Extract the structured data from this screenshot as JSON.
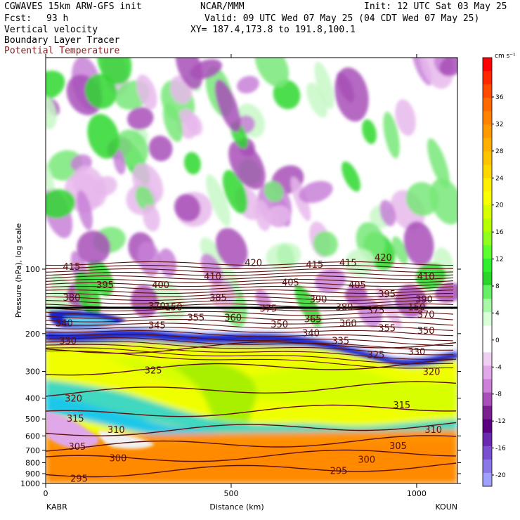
{
  "header": {
    "model": "CGWAVES 15km ARW-GFS init",
    "fcst_label": "Fcst:",
    "fcst_value": "93 h",
    "field1": "Vertical velocity",
    "field2": "Boundary Layer Tracer",
    "field3": "Potential Temperature",
    "source": "NCAR/MMM",
    "init": "Init: 12 UTC Sat 03 May 25",
    "valid": "Valid: 09 UTC Wed 07 May 25 (04 CDT Wed 07 May 25)",
    "xy": "XY= 187.4,173.8 to 191.8,100.1"
  },
  "colors": {
    "theta_line": "#5a1010",
    "tropopause_line": "#000000"
  },
  "chart_data": {
    "type": "heatmap",
    "title": "Vertical velocity, Boundary Layer Tracer, Potential Temperature cross section",
    "xlabel": "Distance (km)",
    "ylabel": "Pressure (hPa), log scale",
    "x_ticks": [
      "0",
      "500",
      "1000"
    ],
    "x_tick_values": [
      0,
      500,
      1000
    ],
    "xlim": [
      0,
      1110
    ],
    "y_ticks": [
      "100",
      "200",
      "300",
      "400",
      "500",
      "600",
      "700",
      "800",
      "900",
      "1000"
    ],
    "y_scale": "log",
    "x_endpoints": [
      "KABR",
      "KOUN"
    ],
    "colorbar": {
      "units": "cm s⁻¹",
      "ticks": [
        "36",
        "32",
        "28",
        "24",
        "20",
        "16",
        "12",
        "8",
        "4",
        "0",
        "-4",
        "-8",
        "-12",
        "-16",
        "-20"
      ],
      "colors": [
        "#ff0000",
        "#ff2800",
        "#ff4a00",
        "#ff6a00",
        "#ff8200",
        "#ff9a00",
        "#ffb000",
        "#ffc400",
        "#ffd800",
        "#fff000",
        "#f8ff00",
        "#d8ff00",
        "#b8ff00",
        "#90ff20",
        "#5cff30",
        "#30ee30",
        "#2ad42a",
        "#66f066",
        "#a8f8a8",
        "#d8ffd8",
        "#ffffff",
        "#ffffff",
        "#f0d0f0",
        "#e0a8e8",
        "#cc80d8",
        "#a850b8",
        "#7a2090",
        "#5a0080",
        "#6a28b0",
        "#7a50d0",
        "#8a78e8",
        "#a0a0ff"
      ]
    },
    "theta_contours": [
      {
        "label": "415",
        "p": 97
      },
      {
        "label": "395",
        "p": 118
      },
      {
        "label": "380",
        "p": 135
      },
      {
        "label": "370",
        "p": 150
      },
      {
        "label": "345",
        "p": 185
      },
      {
        "label": "340",
        "p": 195
      },
      {
        "label": "330",
        "p": 240
      },
      {
        "label": "325",
        "p": 300
      },
      {
        "label": "320",
        "p": 380
      },
      {
        "label": "315",
        "p": 480
      },
      {
        "label": "310",
        "p": 580
      },
      {
        "label": "305",
        "p": 680
      },
      {
        "label": "300",
        "p": 780
      },
      {
        "label": "295",
        "p": 900
      }
    ],
    "contour_labels": [
      {
        "text": "415",
        "x": 70,
        "p": 97
      },
      {
        "text": "395",
        "x": 160,
        "p": 118
      },
      {
        "text": "400",
        "x": 310,
        "p": 118
      },
      {
        "text": "380",
        "x": 70,
        "p": 135
      },
      {
        "text": "370",
        "x": 300,
        "p": 148
      },
      {
        "text": "150",
        "x": 345,
        "p": 150
      },
      {
        "text": "385",
        "x": 465,
        "p": 135
      },
      {
        "text": "410",
        "x": 450,
        "p": 108
      },
      {
        "text": "420",
        "x": 560,
        "p": 93
      },
      {
        "text": "405",
        "x": 660,
        "p": 115
      },
      {
        "text": "415",
        "x": 725,
        "p": 95
      },
      {
        "text": "415",
        "x": 815,
        "p": 93
      },
      {
        "text": "420",
        "x": 910,
        "p": 88
      },
      {
        "text": "405",
        "x": 840,
        "p": 118
      },
      {
        "text": "395",
        "x": 920,
        "p": 130
      },
      {
        "text": "410",
        "x": 1025,
        "p": 108
      },
      {
        "text": "390",
        "x": 735,
        "p": 138
      },
      {
        "text": "390",
        "x": 1020,
        "p": 138
      },
      {
        "text": "150",
        "x": 1000,
        "p": 150
      },
      {
        "text": "380",
        "x": 805,
        "p": 150
      },
      {
        "text": "375",
        "x": 890,
        "p": 155
      },
      {
        "text": "370",
        "x": 1025,
        "p": 162
      },
      {
        "text": "375",
        "x": 600,
        "p": 152
      },
      {
        "text": "355",
        "x": 405,
        "p": 168
      },
      {
        "text": "360",
        "x": 505,
        "p": 168
      },
      {
        "text": "365",
        "x": 720,
        "p": 170
      },
      {
        "text": "360",
        "x": 815,
        "p": 178
      },
      {
        "text": "355",
        "x": 920,
        "p": 188
      },
      {
        "text": "350",
        "x": 630,
        "p": 180
      },
      {
        "text": "350",
        "x": 1025,
        "p": 193
      },
      {
        "text": "345",
        "x": 300,
        "p": 182
      },
      {
        "text": "340",
        "x": 50,
        "p": 178
      },
      {
        "text": "340",
        "x": 715,
        "p": 198
      },
      {
        "text": "335",
        "x": 795,
        "p": 215
      },
      {
        "text": "330",
        "x": 60,
        "p": 215
      },
      {
        "text": "330",
        "x": 1000,
        "p": 242
      },
      {
        "text": "325",
        "x": 890,
        "p": 250
      },
      {
        "text": "325",
        "x": 290,
        "p": 295
      },
      {
        "text": "320",
        "x": 75,
        "p": 400
      },
      {
        "text": "320",
        "x": 1040,
        "p": 300
      },
      {
        "text": "315",
        "x": 80,
        "p": 495
      },
      {
        "text": "315",
        "x": 960,
        "p": 430
      },
      {
        "text": "310",
        "x": 190,
        "p": 560
      },
      {
        "text": "310",
        "x": 1045,
        "p": 560
      },
      {
        "text": "305",
        "x": 85,
        "p": 670
      },
      {
        "text": "305",
        "x": 950,
        "p": 665
      },
      {
        "text": "300",
        "x": 195,
        "p": 760
      },
      {
        "text": "300",
        "x": 865,
        "p": 770
      },
      {
        "text": "295",
        "x": 90,
        "p": 945
      },
      {
        "text": "295",
        "x": 790,
        "p": 870
      }
    ]
  }
}
